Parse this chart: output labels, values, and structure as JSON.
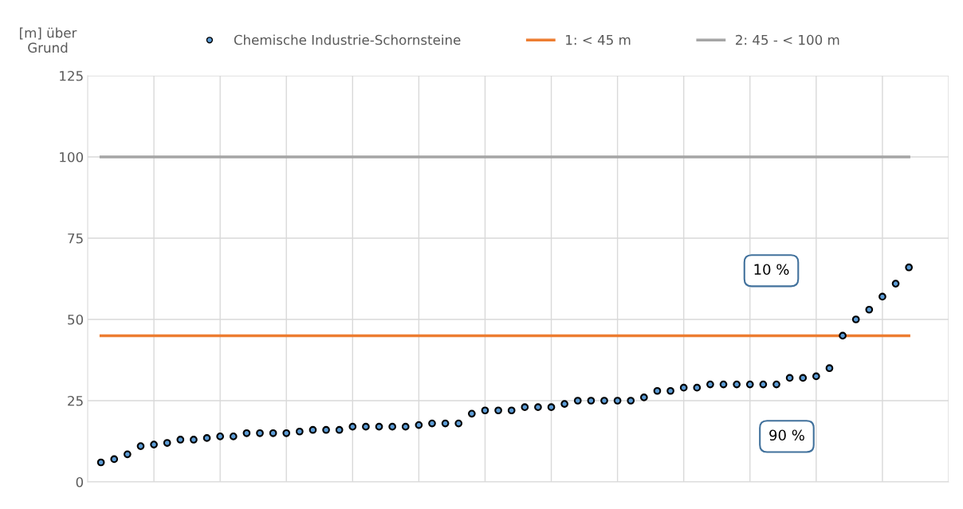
{
  "chart_data": {
    "type": "scatter",
    "ylabel": "[m] über\nGrund",
    "categories": [
      null,
      null,
      null,
      null,
      null,
      null,
      null,
      null,
      null,
      null,
      null,
      null,
      null,
      null,
      null,
      null,
      null,
      null,
      null,
      null,
      null,
      null,
      null,
      null,
      null,
      null,
      null,
      null,
      null,
      null,
      null,
      null,
      null,
      null,
      null,
      null,
      null,
      null,
      null,
      null,
      null,
      null,
      null,
      null,
      null,
      null,
      null,
      null,
      null,
      null,
      null,
      null,
      null,
      null,
      null,
      null,
      null,
      null,
      null,
      null,
      null,
      null
    ],
    "series": [
      {
        "name": "Chemische Industrie-Schornsteine",
        "color": "#5b9bd5",
        "marker": "circle",
        "values": [
          6,
          7,
          8.5,
          11,
          11.5,
          12,
          13,
          13,
          13.5,
          14,
          14,
          15,
          15,
          15,
          15,
          15.5,
          16,
          16,
          16,
          17,
          17,
          17,
          17,
          17,
          17.5,
          18,
          18,
          18,
          21,
          22,
          22,
          22,
          23,
          23,
          23,
          24,
          25,
          25,
          25,
          25,
          25,
          26,
          28,
          28,
          29,
          29,
          30,
          30,
          30,
          30,
          30,
          30,
          32,
          32,
          32.5,
          35,
          45,
          50,
          53,
          57,
          61,
          66
        ]
      },
      {
        "name": "1: < 45 m",
        "type": "line",
        "marker": "none",
        "color": "#ed7d31",
        "values": [
          45,
          45,
          45,
          45,
          45,
          45,
          45,
          45,
          45,
          45,
          45,
          45,
          45,
          45,
          45,
          45,
          45,
          45,
          45,
          45,
          45,
          45,
          45,
          45,
          45,
          45,
          45,
          45,
          45,
          45,
          45,
          45,
          45,
          45,
          45,
          45,
          45,
          45,
          45,
          45,
          45,
          45,
          45,
          45,
          45,
          45,
          45,
          45,
          45,
          45,
          45,
          45,
          45,
          45,
          45,
          45,
          45,
          45,
          45,
          45,
          45,
          45
        ]
      },
      {
        "name": "2: 45 - < 100 m",
        "type": "line",
        "marker": "none",
        "color": "#a5a5a5",
        "values": [
          100,
          100,
          100,
          100,
          100,
          100,
          100,
          100,
          100,
          100,
          100,
          100,
          100,
          100,
          100,
          100,
          100,
          100,
          100,
          100,
          100,
          100,
          100,
          100,
          100,
          100,
          100,
          100,
          100,
          100,
          100,
          100,
          100,
          100,
          100,
          100,
          100,
          100,
          100,
          100,
          100,
          100,
          100,
          100,
          100,
          100,
          100,
          100,
          100,
          100,
          100,
          100,
          100,
          100,
          100,
          100,
          100,
          100,
          100,
          100,
          100,
          100
        ]
      }
    ],
    "ylim": [
      0,
      125
    ],
    "yticks": [
      0,
      25,
      50,
      75,
      100,
      125
    ],
    "grid": true,
    "legend": "top",
    "line_style": "solid",
    "tick_labels": "y",
    "annotations": [
      "10 %",
      "90 %"
    ]
  }
}
